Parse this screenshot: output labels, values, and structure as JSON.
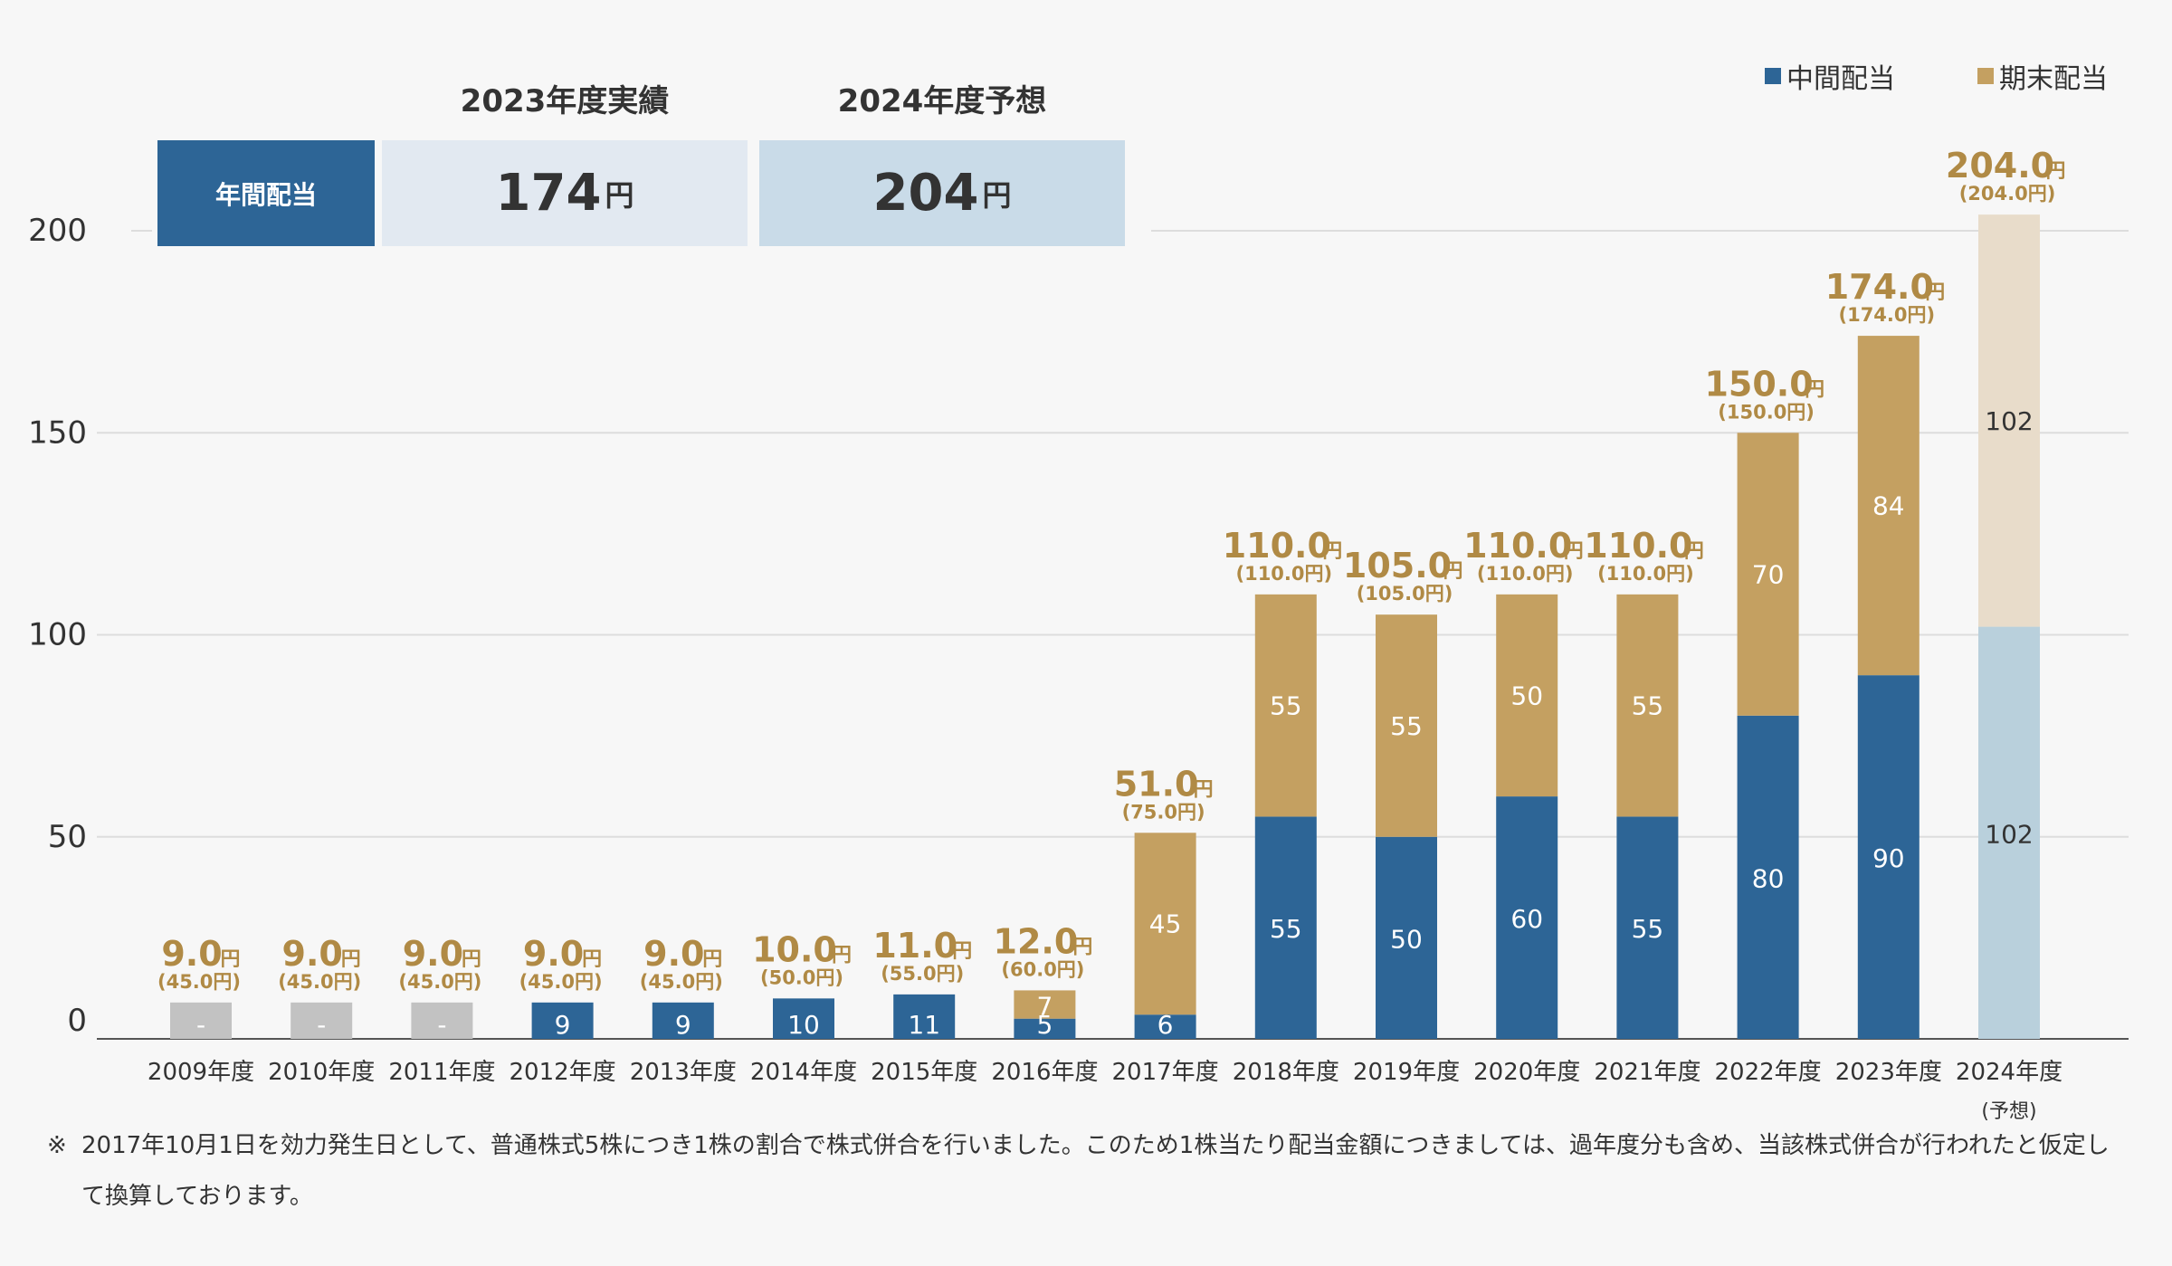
{
  "kpi": {
    "label": "年間配当",
    "actual_header": "2023年度実績",
    "actual_value": "174",
    "forecast_header": "2024年度予想",
    "forecast_value": "204",
    "unit": "円"
  },
  "legend": {
    "interim": "中間配当",
    "final": "期末配当"
  },
  "note": {
    "mark": "※",
    "text": "2017年10月1日を効力発生日として、普通株式5株につき1株の割合で株式併合を行いました。このため1株当たり配当金額につきましては、過年度分も含め、当該株式併合が行われたと仮定して換算しております。"
  },
  "colors": {
    "interim": "#2d6596",
    "final": "#c4a061",
    "forecast_interim": "#b9d0dc",
    "forecast_final": "#e8dcca",
    "pre_merge": "#c2c2c2",
    "total_text": "#b08a45",
    "grid": "#dddddd"
  },
  "chart_data": {
    "type": "bar",
    "stacked": true,
    "ylim": [
      0,
      200
    ],
    "yticks": [
      0,
      50,
      100,
      150,
      200
    ],
    "grid": true,
    "legend_position": "top-right",
    "unit": "円",
    "categories": [
      "2009年度",
      "2010年度",
      "2011年度",
      "2012年度",
      "2013年度",
      "2014年度",
      "2015年度",
      "2016年度",
      "2017年度",
      "2018年度",
      "2019年度",
      "2020年度",
      "2021年度",
      "2022年度",
      "2023年度",
      "2024年度"
    ],
    "category_sublabels": [
      "",
      "",
      "",
      "",
      "",
      "",
      "",
      "",
      "",
      "",
      "",
      "",
      "",
      "",
      "",
      "(予想)"
    ],
    "series": [
      {
        "name": "中間配当",
        "values": [
          9,
          9,
          9,
          9,
          9,
          10,
          11,
          5,
          6,
          55,
          50,
          60,
          55,
          80,
          90,
          102
        ],
        "labels": [
          "-",
          "-",
          "-",
          "9",
          "9",
          "10",
          "11",
          "5",
          "6",
          "55",
          "50",
          "60",
          "55",
          "80",
          "90",
          "102"
        ]
      },
      {
        "name": "期末配当",
        "values": [
          0,
          0,
          0,
          0,
          0,
          0,
          0,
          7,
          45,
          55,
          55,
          50,
          55,
          70,
          84,
          102
        ],
        "labels": [
          "",
          "",
          "",
          "",
          "",
          "",
          "",
          "7",
          "45",
          "55",
          "55",
          "50",
          "55",
          "70",
          "84",
          "102"
        ]
      }
    ],
    "totals": [
      "9.0",
      "9.0",
      "9.0",
      "9.0",
      "9.0",
      "10.0",
      "11.0",
      "12.0",
      "51.0",
      "110.0",
      "105.0",
      "110.0",
      "110.0",
      "150.0",
      "174.0",
      "204.0"
    ],
    "totals_pre_merge": [
      "(45.0円)",
      "(45.0円)",
      "(45.0円)",
      "(45.0円)",
      "(45.0円)",
      "(50.0円)",
      "(55.0円)",
      "(60.0円)",
      "(75.0円)",
      "(110.0円)",
      "(105.0円)",
      "(110.0円)",
      "(110.0円)",
      "(150.0円)",
      "(174.0円)",
      "(204.0円)"
    ],
    "pre_merge_years": [
      0,
      1,
      2
    ],
    "forecast_years": [
      15
    ]
  }
}
